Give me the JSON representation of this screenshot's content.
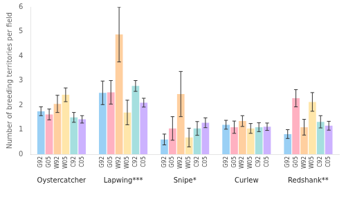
{
  "chart_data": {
    "type": "bar",
    "ylabel": "Number of breeding territories per field",
    "categories": [
      "Oystercatcher",
      "Lapwing***",
      "Snipe*",
      "Curlew",
      "Redshank**"
    ],
    "series": [
      {
        "name": "G92",
        "values": [
          1.75,
          2.5,
          0.6,
          1.2,
          0.82
        ],
        "errors": [
          0.18,
          0.48,
          0.22,
          0.18,
          0.18
        ]
      },
      {
        "name": "G05",
        "values": [
          1.62,
          2.52,
          1.05,
          1.1,
          2.28
        ],
        "errors": [
          0.22,
          0.48,
          0.48,
          0.25,
          0.35
        ]
      },
      {
        "name": "W92",
        "values": [
          2.05,
          4.88,
          2.45,
          1.35,
          1.1
        ],
        "errors": [
          0.35,
          1.12,
          0.92,
          0.22,
          0.32
        ]
      },
      {
        "name": "W05",
        "values": [
          2.42,
          1.7,
          0.68,
          1.05,
          2.13
        ],
        "errors": [
          0.28,
          0.5,
          0.38,
          0.2,
          0.38
        ]
      },
      {
        "name": "C92",
        "values": [
          1.5,
          2.78,
          1.05,
          1.1,
          1.32
        ],
        "errors": [
          0.2,
          0.22,
          0.28,
          0.18,
          0.25
        ]
      },
      {
        "name": "C05",
        "values": [
          1.42,
          2.1,
          1.28,
          1.12,
          1.16
        ],
        "errors": [
          0.15,
          0.18,
          0.2,
          0.15,
          0.18
        ]
      }
    ],
    "ylim": [
      0,
      6
    ],
    "yticks": [
      0,
      1,
      2,
      3,
      4,
      5,
      6
    ],
    "grid": false
  }
}
